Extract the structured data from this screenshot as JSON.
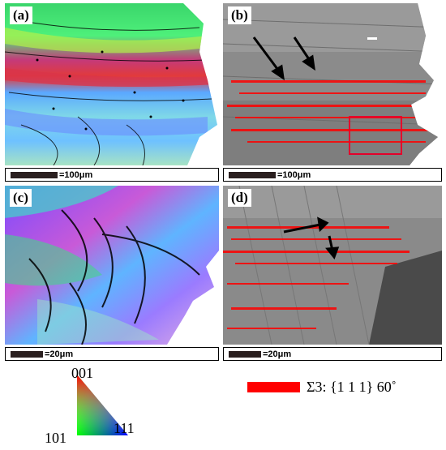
{
  "panels": [
    {
      "label": "(a)"
    },
    {
      "label": "(b)"
    },
    {
      "label": "(c)"
    },
    {
      "label": "(d)"
    }
  ],
  "scalebars": [
    {
      "text": "=100μm"
    },
    {
      "text": "=100μm"
    },
    {
      "text": "=20μm"
    },
    {
      "text": "=20μm"
    }
  ],
  "ipf_legend": {
    "top": "001",
    "left": "101",
    "right": "111"
  },
  "boundary_legend": {
    "text": "Σ3: {1 1 1} 60˚",
    "color": "#ff0000"
  }
}
